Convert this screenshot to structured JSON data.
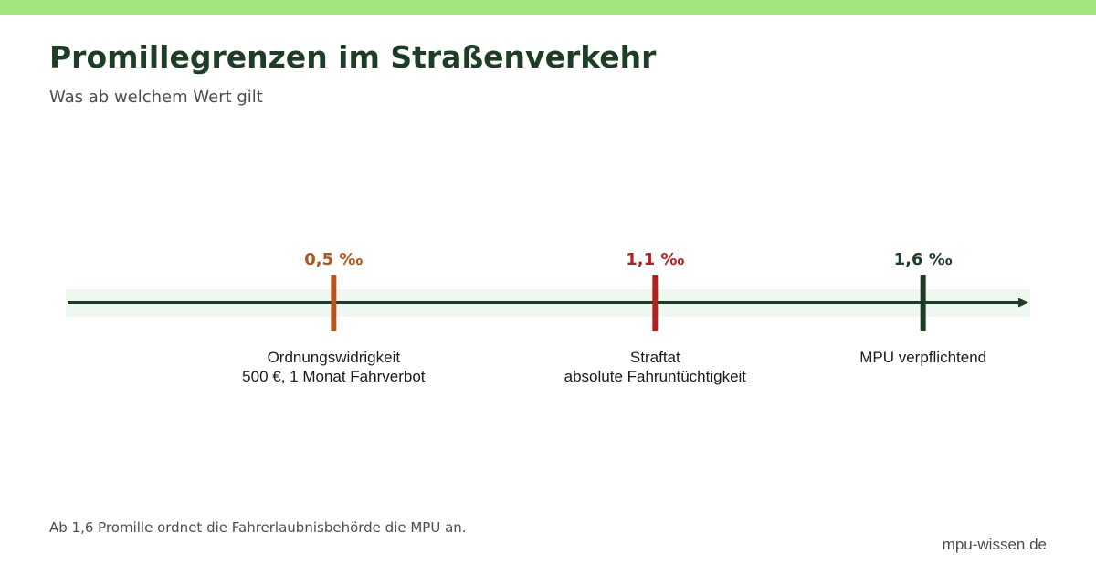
{
  "header": {
    "title": "Promillegrenzen im Straßenverkehr",
    "subtitle": "Was ab welchem Wert gilt"
  },
  "timeline": {
    "min": 0,
    "max": 1.8,
    "thresholds": [
      {
        "value": 0.5,
        "value_label": "0,5 ‰",
        "description": [
          "Ordnungswidrigkeit",
          "500 €, 1 Monat Fahrverbot"
        ],
        "color": "#b5541b"
      },
      {
        "value": 1.1,
        "value_label": "1,1 ‰",
        "description": [
          "Straftat",
          "absolute Fahruntüchtigkeit"
        ],
        "color": "#b41f1f"
      },
      {
        "value": 1.6,
        "value_label": "1,6 ‰",
        "description": [
          "MPU verpflichtend"
        ],
        "color": "#1e3d29"
      }
    ]
  },
  "footer": {
    "note": "Ab 1,6 Promille ordnet die Fahrerlaubnisbehörde die MPU an.",
    "brand": "mpu-wissen.de"
  },
  "colors": {
    "accent_stripe": "#a0e67c",
    "title": "#1e3d29",
    "subtitle": "#4d4d4d",
    "axis_line": "#1e3d29",
    "axis_band": "#eef8f1",
    "description_text": "#1a1a1a",
    "footnote": "#4d4d4d",
    "brand": "#4d4d4d"
  }
}
